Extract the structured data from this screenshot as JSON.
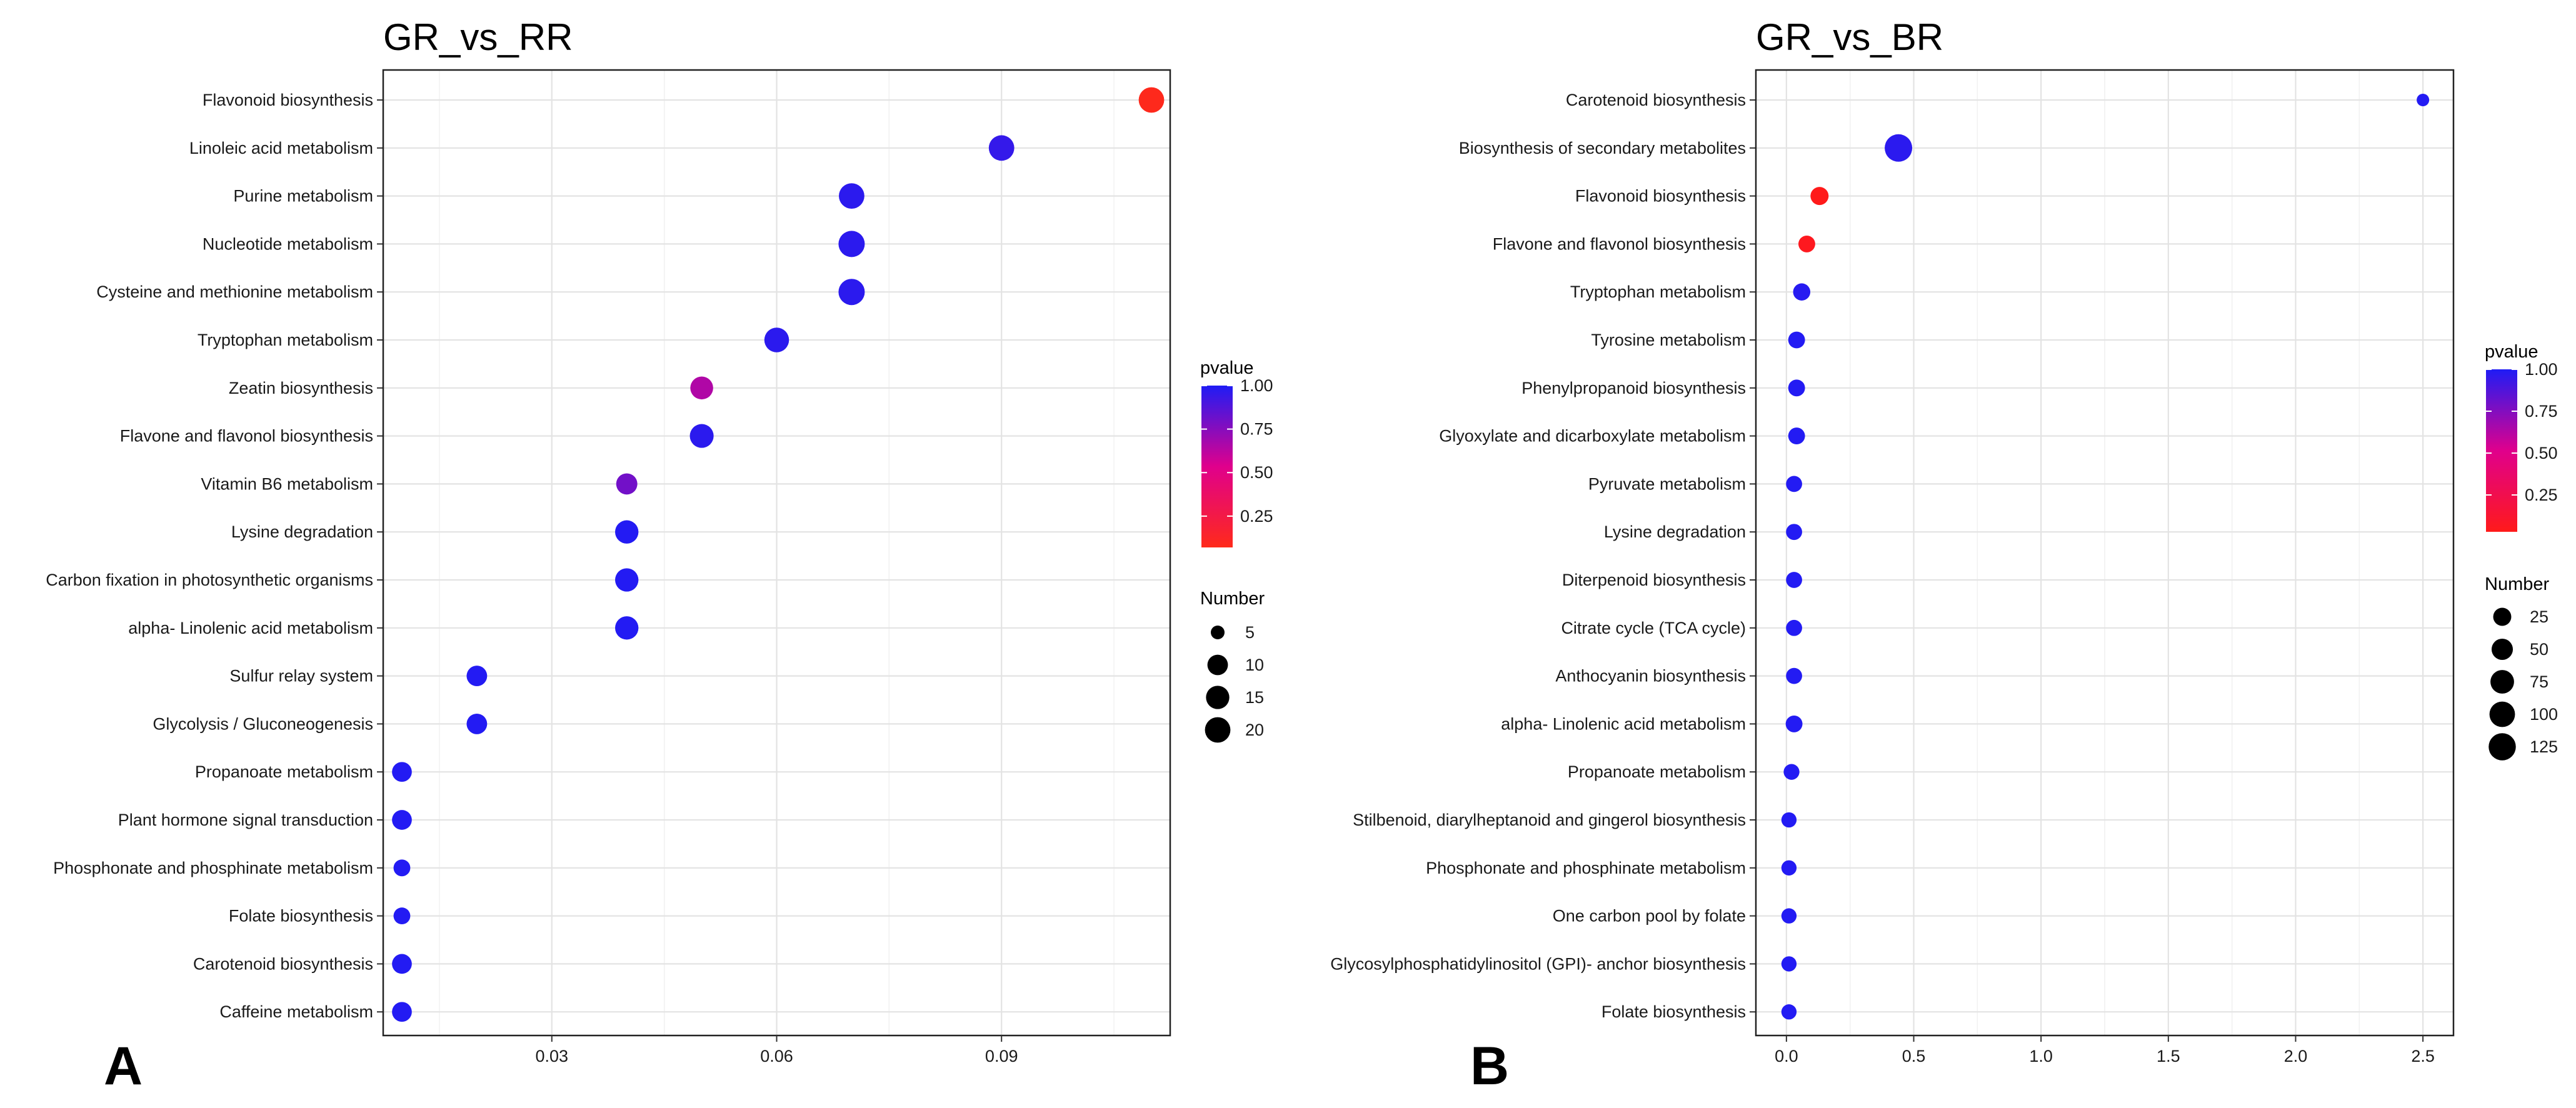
{
  "chart_data": [
    {
      "type": "scatter",
      "panel_label": "A",
      "title": "GR_vs_RR",
      "xlabel": "",
      "ylabel": "",
      "xlim": [
        0.0075,
        0.1125
      ],
      "x_ticks": [
        0.03,
        0.06,
        0.09
      ],
      "x_tick_labels": [
        "0.03",
        "0.06",
        "0.09"
      ],
      "grid": true,
      "categories": [
        "Flavonoid biosynthesis",
        "Linoleic acid metabolism",
        "Purine metabolism",
        "Nucleotide metabolism",
        "Cysteine and methionine metabolism",
        "Tryptophan metabolism",
        "Zeatin biosynthesis",
        "Flavone and flavonol biosynthesis",
        "Vitamin B6 metabolism",
        "Lysine degradation",
        "Carbon fixation in photosynthetic organisms",
        "alpha- Linolenic acid metabolism",
        "Sulfur relay system",
        "Glycolysis / Gluconeogenesis",
        "Propanoate metabolism",
        "Plant hormone signal transduction",
        "Phosphonate and phosphinate metabolism",
        "Folate biosynthesis",
        "Carotenoid biosynthesis",
        "Caffeine metabolism"
      ],
      "x": [
        0.11,
        0.09,
        0.07,
        0.07,
        0.07,
        0.06,
        0.05,
        0.05,
        0.04,
        0.04,
        0.04,
        0.04,
        0.02,
        0.02,
        0.01,
        0.01,
        0.01,
        0.01,
        0.01,
        0.01
      ],
      "number": [
        20,
        20,
        20,
        22,
        22,
        18,
        14,
        16,
        11,
        15,
        15,
        15,
        10,
        10,
        9,
        9,
        6,
        6,
        9,
        9
      ],
      "pvalue": [
        0.08,
        0.95,
        0.97,
        0.97,
        0.97,
        0.97,
        0.65,
        0.97,
        0.8,
        0.99,
        0.99,
        0.99,
        0.99,
        0.99,
        0.99,
        0.99,
        0.99,
        0.99,
        0.99,
        0.99
      ],
      "color_legend": {
        "title": "pvalue",
        "range": [
          0.07,
          1.0
        ],
        "ticks": [
          1.0,
          0.75,
          0.5,
          0.25
        ],
        "tick_labels": [
          "1.00",
          "0.75",
          "0.50",
          "0.25"
        ],
        "low_color": "#ff2a1a",
        "mid_color": "#e0008c",
        "high_color": "#1f1cf5"
      },
      "size_legend": {
        "title": "Number",
        "values": [
          5,
          10,
          15,
          20
        ],
        "labels": [
          "5",
          "10",
          "15",
          "20"
        ]
      }
    },
    {
      "type": "scatter",
      "panel_label": "B",
      "title": "GR_vs_BR",
      "xlabel": "",
      "ylabel": "",
      "xlim": [
        -0.12,
        2.62
      ],
      "x_ticks": [
        0.0,
        0.5,
        1.0,
        1.5,
        2.0,
        2.5
      ],
      "x_tick_labels": [
        "0.0",
        "0.5",
        "1.0",
        "1.5",
        "2.0",
        "2.5"
      ],
      "grid": true,
      "categories": [
        "Carotenoid biosynthesis",
        "Biosynthesis of secondary metabolites",
        "Flavonoid biosynthesis",
        "Flavone and flavonol biosynthesis",
        "Tryptophan metabolism",
        "Tyrosine metabolism",
        "Phenylpropanoid biosynthesis",
        "Glyoxylate and dicarboxylate metabolism",
        "Pyruvate metabolism",
        "Lysine degradation",
        "Diterpenoid biosynthesis",
        "Citrate cycle (TCA cycle)",
        "Anthocyanin biosynthesis",
        "alpha- Linolenic acid metabolism",
        "Propanoate metabolism",
        "Stilbenoid, diarylheptanoid and gingerol biosynthesis",
        "Phosphonate and phosphinate metabolism",
        "One carbon pool by folate",
        "Glycosylphosphatidylinositol (GPI)- anchor biosynthesis",
        "Folate biosynthesis"
      ],
      "x": [
        2.5,
        0.44,
        0.13,
        0.08,
        0.06,
        0.04,
        0.04,
        0.04,
        0.03,
        0.03,
        0.03,
        0.03,
        0.03,
        0.03,
        0.02,
        0.01,
        0.01,
        0.01,
        0.01,
        0.01
      ],
      "number": [
        8,
        130,
        25,
        18,
        20,
        18,
        18,
        18,
        15,
        15,
        15,
        15,
        15,
        18,
        14,
        12,
        12,
        12,
        12,
        12
      ],
      "pvalue": [
        0.99,
        0.97,
        0.03,
        0.05,
        0.98,
        0.99,
        0.99,
        0.99,
        0.99,
        0.99,
        0.99,
        0.99,
        0.99,
        0.99,
        0.99,
        0.99,
        0.99,
        0.99,
        0.99,
        0.99
      ],
      "color_legend": {
        "title": "pvalue",
        "range": [
          0.03,
          1.0
        ],
        "ticks": [
          1.0,
          0.75,
          0.5,
          0.25
        ],
        "tick_labels": [
          "1.00",
          "0.75",
          "0.50",
          "0.25"
        ],
        "low_color": "#ff1a1a",
        "mid_color": "#e0008c",
        "high_color": "#1f1cf5"
      },
      "size_legend": {
        "title": "Number",
        "values": [
          25,
          50,
          75,
          100,
          125
        ],
        "labels": [
          "25",
          "50",
          "75",
          "100",
          "125"
        ]
      }
    }
  ]
}
